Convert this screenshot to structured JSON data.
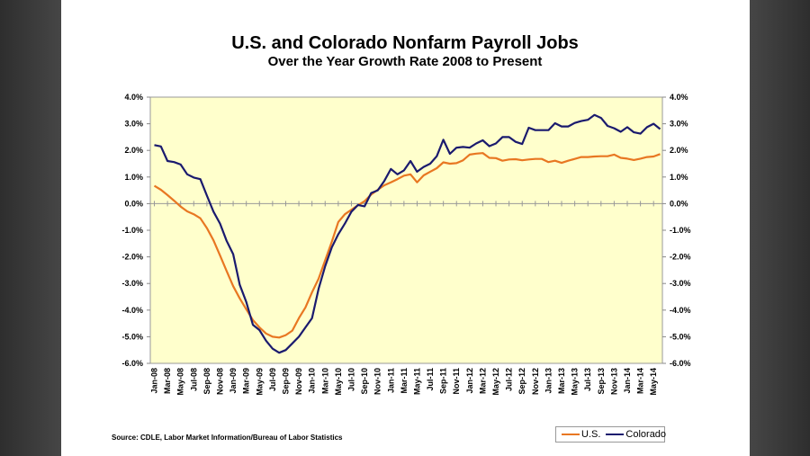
{
  "chart_data": {
    "type": "line",
    "title": "U.S. and Colorado Nonfarm Payroll Jobs",
    "subtitle": "Over the Year Growth Rate 2008 to Present",
    "ylim": [
      -6,
      4
    ],
    "y_tick_labels": [
      "4.0%",
      "3.0%",
      "2.0%",
      "1.0%",
      "0.0%",
      "-1.0%",
      "-2.0%",
      "-3.0%",
      "-4.0%",
      "-5.0%",
      "-6.0%"
    ],
    "y_ticks": [
      4,
      3,
      2,
      1,
      0,
      -1,
      -2,
      -3,
      -4,
      -5,
      -6
    ],
    "secondary_y_axis": true,
    "x_tick_labels": [
      "Jan-08",
      "Mar-08",
      "May-08",
      "Jul-08",
      "Sep-08",
      "Nov-08",
      "Jan-09",
      "Mar-09",
      "May-09",
      "Jul-09",
      "Sep-09",
      "Nov-09",
      "Jan-10",
      "Mar-10",
      "May-10",
      "Jul-10",
      "Sep-10",
      "Nov-10",
      "Jan-11",
      "Mar-11",
      "May-11",
      "Jul-11",
      "Sep-11",
      "Nov-11",
      "Jan-12",
      "Mar-12",
      "May-12",
      "Jul-12",
      "Sep-12",
      "Nov-12",
      "Jan-13",
      "Mar-13",
      "May-13",
      "Jul-13",
      "Sep-13",
      "Nov-13",
      "Jan-14",
      "Mar-14",
      "May-14"
    ],
    "x": [
      "Jan-08",
      "Feb-08",
      "Mar-08",
      "Apr-08",
      "May-08",
      "Jun-08",
      "Jul-08",
      "Aug-08",
      "Sep-08",
      "Oct-08",
      "Nov-08",
      "Dec-08",
      "Jan-09",
      "Feb-09",
      "Mar-09",
      "Apr-09",
      "May-09",
      "Jun-09",
      "Jul-09",
      "Aug-09",
      "Sep-09",
      "Oct-09",
      "Nov-09",
      "Dec-09",
      "Jan-10",
      "Feb-10",
      "Mar-10",
      "Apr-10",
      "May-10",
      "Jun-10",
      "Jul-10",
      "Aug-10",
      "Sep-10",
      "Oct-10",
      "Nov-10",
      "Dec-10",
      "Jan-11",
      "Feb-11",
      "Mar-11",
      "Apr-11",
      "May-11",
      "Jun-11",
      "Jul-11",
      "Aug-11",
      "Sep-11",
      "Oct-11",
      "Nov-11",
      "Dec-11",
      "Jan-12",
      "Feb-12",
      "Mar-12",
      "Apr-12",
      "May-12",
      "Jun-12",
      "Jul-12",
      "Aug-12",
      "Sep-12",
      "Oct-12",
      "Nov-12",
      "Dec-12",
      "Jan-13",
      "Feb-13",
      "Mar-13",
      "Apr-13",
      "May-13",
      "Jun-13",
      "Jul-13",
      "Aug-13",
      "Sep-13",
      "Oct-13",
      "Nov-13",
      "Dec-13",
      "Jan-14",
      "Feb-14",
      "Mar-14",
      "Apr-14",
      "May-14",
      "Jun-14"
    ],
    "series": [
      {
        "name": "U.S.",
        "color": "#E87722",
        "values": [
          0.67,
          0.52,
          0.32,
          0.11,
          -0.11,
          -0.29,
          -0.4,
          -0.55,
          -0.92,
          -1.38,
          -1.95,
          -2.53,
          -3.1,
          -3.56,
          -3.97,
          -4.37,
          -4.65,
          -4.88,
          -5.0,
          -5.03,
          -4.94,
          -4.77,
          -4.3,
          -3.9,
          -3.33,
          -2.82,
          -2.13,
          -1.44,
          -0.69,
          -0.4,
          -0.23,
          -0.06,
          0.09,
          0.34,
          0.52,
          0.69,
          0.8,
          0.92,
          1.05,
          1.1,
          0.8,
          1.06,
          1.2,
          1.33,
          1.55,
          1.5,
          1.52,
          1.63,
          1.84,
          1.88,
          1.9,
          1.72,
          1.71,
          1.61,
          1.66,
          1.67,
          1.63,
          1.66,
          1.68,
          1.68,
          1.56,
          1.61,
          1.53,
          1.61,
          1.68,
          1.75,
          1.75,
          1.77,
          1.78,
          1.78,
          1.84,
          1.72,
          1.69,
          1.64,
          1.69,
          1.75,
          1.77,
          1.86
        ]
      },
      {
        "name": "Colorado",
        "color": "#1A1A6E",
        "values": [
          2.2,
          2.15,
          1.6,
          1.56,
          1.47,
          1.1,
          0.98,
          0.92,
          0.3,
          -0.3,
          -0.75,
          -1.4,
          -1.9,
          -3.05,
          -3.7,
          -4.55,
          -4.75,
          -5.15,
          -5.45,
          -5.6,
          -5.5,
          -5.25,
          -5.0,
          -4.65,
          -4.3,
          -3.2,
          -2.35,
          -1.65,
          -1.15,
          -0.75,
          -0.3,
          -0.05,
          -0.1,
          0.4,
          0.5,
          0.85,
          1.3,
          1.1,
          1.25,
          1.6,
          1.2,
          1.38,
          1.5,
          1.78,
          2.4,
          1.87,
          2.1,
          2.13,
          2.1,
          2.26,
          2.38,
          2.16,
          2.26,
          2.5,
          2.5,
          2.32,
          2.24,
          2.85,
          2.76,
          2.76,
          2.76,
          3.02,
          2.9,
          2.9,
          3.03,
          3.1,
          3.15,
          3.33,
          3.22,
          2.92,
          2.83,
          2.7,
          2.87,
          2.68,
          2.63,
          2.87,
          3.0,
          2.8
        ]
      }
    ],
    "legend": {
      "placement": "bottom-right",
      "labels": [
        "U.S.",
        "Colorado"
      ]
    },
    "grid": false,
    "plot_background": "#FFFFCC"
  },
  "source": "Source: CDLE, Labor Market Information/Bureau of Labor Statistics"
}
